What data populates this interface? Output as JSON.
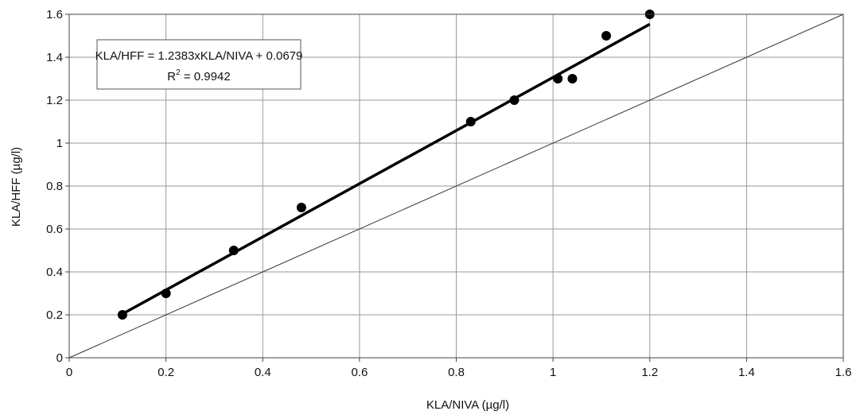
{
  "chart_data": {
    "type": "scatter",
    "xlabel": "KLA/NIVA (µg/l)",
    "ylabel": "KLA/HFF (µg/l)",
    "xlim": [
      0,
      1.6
    ],
    "ylim": [
      0,
      1.6
    ],
    "x_ticks": [
      "0",
      "0.2",
      "0.4",
      "0.6",
      "0.8",
      "1",
      "1.2",
      "1.4",
      "1.6"
    ],
    "y_ticks": [
      "0",
      "0.2",
      "0.4",
      "0.6",
      "0.8",
      "1",
      "1.2",
      "1.4",
      "1.6"
    ],
    "grid": true,
    "points": [
      {
        "x": 0.11,
        "y": 0.2
      },
      {
        "x": 0.2,
        "y": 0.3
      },
      {
        "x": 0.34,
        "y": 0.5
      },
      {
        "x": 0.48,
        "y": 0.7
      },
      {
        "x": 0.83,
        "y": 1.1
      },
      {
        "x": 0.92,
        "y": 1.2
      },
      {
        "x": 1.01,
        "y": 1.3
      },
      {
        "x": 1.04,
        "y": 1.3
      },
      {
        "x": 1.11,
        "y": 1.5
      },
      {
        "x": 1.2,
        "y": 1.6
      }
    ],
    "trendline": {
      "slope": 1.2383,
      "intercept": 0.0679,
      "x_range": [
        0.11,
        1.2
      ]
    },
    "reference_line": {
      "slope": 1,
      "intercept": 0
    },
    "annotation": {
      "equation": "KLA/HFF = 1.2383xKLA/NIVA + 0.0679",
      "r2_label": "R",
      "r2_exponent": "2",
      "r2_value": " = 0.9942"
    }
  }
}
